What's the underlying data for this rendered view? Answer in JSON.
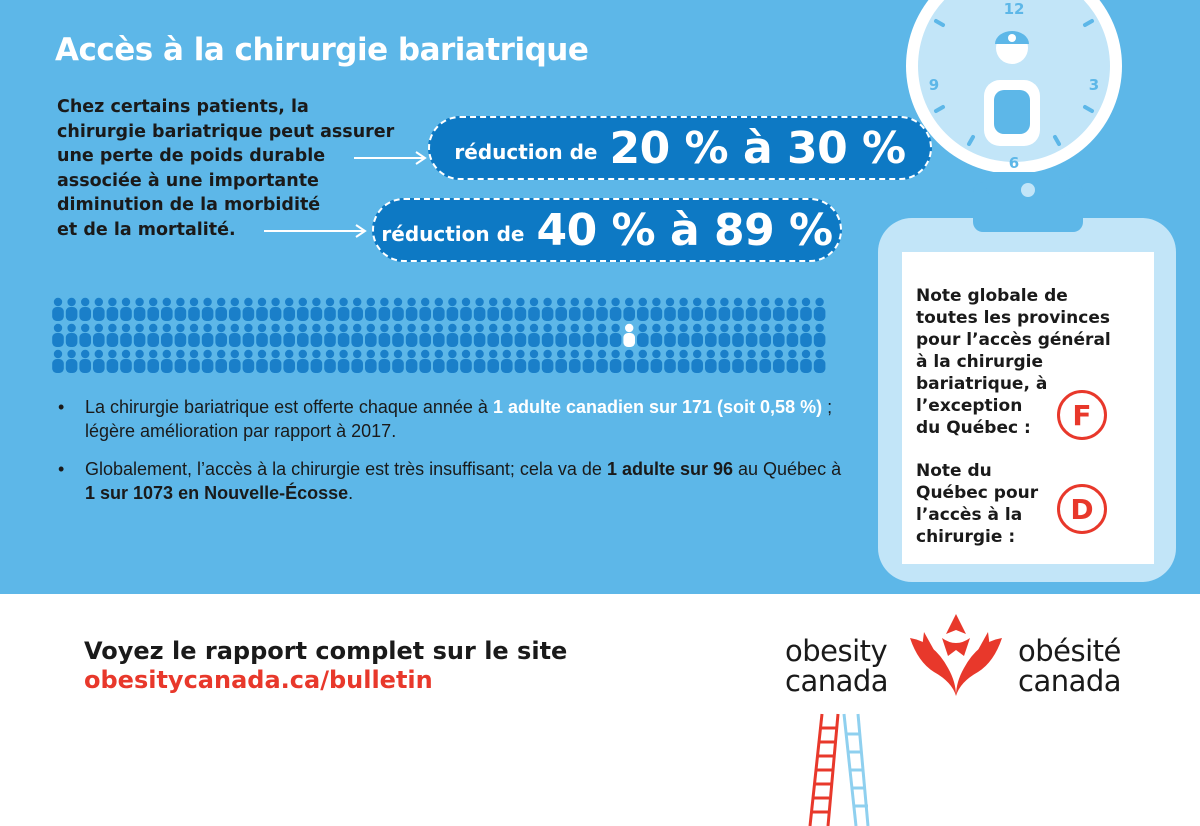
{
  "title": "Accès à la chirurgie bariatrique",
  "intro_lines": [
    "Chez certains patients, la",
    "chirurgie bariatrique peut assurer",
    "une perte de poids durable",
    "associée à une importante",
    "diminution de la morbidité",
    "et de la mortalité."
  ],
  "stat1": {
    "prefix": "réduction de",
    "value": "20 % à 30 %"
  },
  "stat2": {
    "prefix": "réduction de",
    "value": "40 % à 89 %"
  },
  "bullet1": {
    "text1": "La chirurgie bariatrique est offerte chaque année à ",
    "hl1": "1 adulte canadien sur 171",
    "hl2": " (soit 0,58 %)",
    "text2": " ; légère amélioration par rapport à 2017."
  },
  "bullet2": {
    "text1": "Globalement, l’accès à la chirurgie est très insuffisant; cela va de ",
    "hl1": "1 adulte sur 96",
    "text2": " au Québec à ",
    "hl2": "1 sur 1073 en Nouvelle-Écosse",
    "text3": "."
  },
  "clock_numbers": {
    "n12": "12",
    "n3": "3",
    "n6": "6",
    "n9": "9"
  },
  "clipboard": {
    "note1_lines": [
      "Note globale de",
      "toutes les provinces",
      "pour l’accès général",
      "à la chirurgie",
      "bariatrique, à",
      "l’exception",
      "du Québec :"
    ],
    "grade1": "F",
    "note2_lines": [
      "Note du",
      "Québec pour",
      "l’accès à la",
      "chirurgie :"
    ],
    "grade2": "D"
  },
  "footer": {
    "line1": "Voyez le rapport complet sur le site",
    "link": "obesitycanada.ca/bulletin"
  },
  "logo": {
    "en_line1": "obesity",
    "en_line2": "canada",
    "fr_line1": "obésité",
    "fr_line2": "canada"
  },
  "colors": {
    "background_blue": "#5db7e8",
    "pill_blue": "#0d79c4",
    "people_blue": "#1a7fc9",
    "accent_red": "#e8382b",
    "clipboard_light": "#c2e5f8"
  },
  "icons": [
    "person-icon",
    "clock-icon",
    "clipboard-icon",
    "maple-leaf-logo-icon",
    "ladder-icon"
  ]
}
